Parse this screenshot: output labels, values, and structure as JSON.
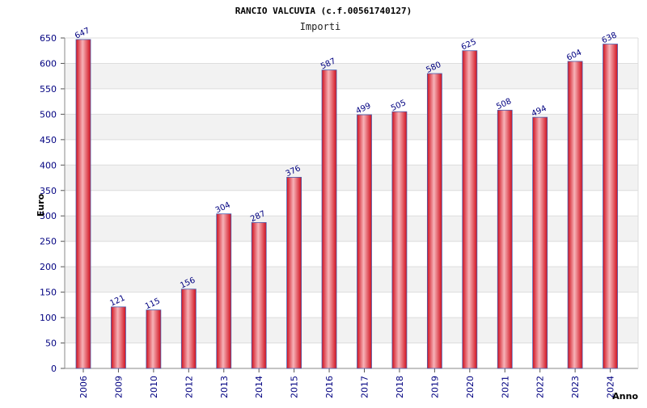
{
  "chart_data": {
    "type": "bar",
    "title": "RANCIO VALCUVIA (c.f.00561740127)",
    "subtitle": "Importi",
    "xlabel": "Anno",
    "ylabel": "Euro",
    "ylim": [
      0,
      650
    ],
    "ytick_step": 50,
    "grid": true,
    "categories": [
      "2006",
      "2009",
      "2010",
      "2012",
      "2013",
      "2014",
      "2015",
      "2016",
      "2017",
      "2018",
      "2019",
      "2020",
      "2021",
      "2022",
      "2023",
      "2024"
    ],
    "values": [
      647,
      121,
      115,
      156,
      304,
      287,
      376,
      587,
      499,
      505,
      580,
      625,
      508,
      494,
      604,
      638
    ],
    "colors": {
      "bar_edge": "#d0101e",
      "bar_center": "#f7b3b8",
      "bar_outline": "#4a5fb0",
      "tick_text": "#000080",
      "band": "#f2f2f2",
      "grid": "#dddddd"
    }
  }
}
